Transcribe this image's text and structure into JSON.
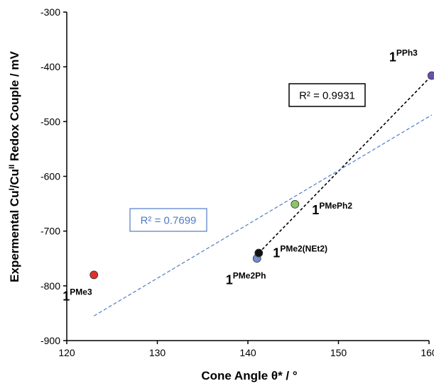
{
  "chart_data": {
    "type": "scatter",
    "title": "",
    "xlabel": "Cone Angle θ* / °",
    "ylabel": {
      "parts": [
        {
          "text": "Expermental Cu",
          "sup": false
        },
        {
          "text": "I",
          "sup": true
        },
        {
          "text": "/Cu",
          "sup": false
        },
        {
          "text": "II",
          "sup": true
        },
        {
          "text": " Redox Couple / mV",
          "sup": false
        }
      ]
    },
    "xlim": [
      120,
      160
    ],
    "ylim": [
      -900,
      -300
    ],
    "xticks": [
      120,
      130,
      140,
      150,
      160
    ],
    "yticks": [
      -900,
      -800,
      -700,
      -600,
      -500,
      -400,
      -300
    ],
    "grid": false,
    "points": [
      {
        "name": "PMe3",
        "prefix": "1",
        "x": 123.0,
        "y": -780,
        "color": "#e0302a",
        "label_pos": "below-left"
      },
      {
        "name": "PMe2Ph",
        "prefix": "1",
        "x": 141.0,
        "y": -750,
        "color": "#6f8fd0",
        "label_pos": "below-left"
      },
      {
        "name": "PMe2(NEt2)",
        "prefix": "1",
        "x": 141.2,
        "y": -740,
        "color": "#111111",
        "label_pos": "right"
      },
      {
        "name": "PMePh2",
        "prefix": "1",
        "x": 145.2,
        "y": -651,
        "color": "#8cc46a",
        "label_pos": "below-right"
      },
      {
        "name": "PPh3",
        "prefix": "1",
        "x": 160.3,
        "y": -416,
        "color": "#6a4fb5",
        "label_pos": "above-left"
      }
    ],
    "fits": [
      {
        "style": "dashed",
        "color": "#000000",
        "x": [
          141.2,
          160.3
        ],
        "y": [
          -740,
          -416
        ],
        "r2_label": "R² = 0.9931"
      },
      {
        "style": "dashed",
        "color": "#4f7cc7",
        "x": [
          123.0,
          160.3
        ],
        "y": [
          -855,
          -488
        ],
        "r2_label": "R² = 0.7699"
      }
    ]
  }
}
